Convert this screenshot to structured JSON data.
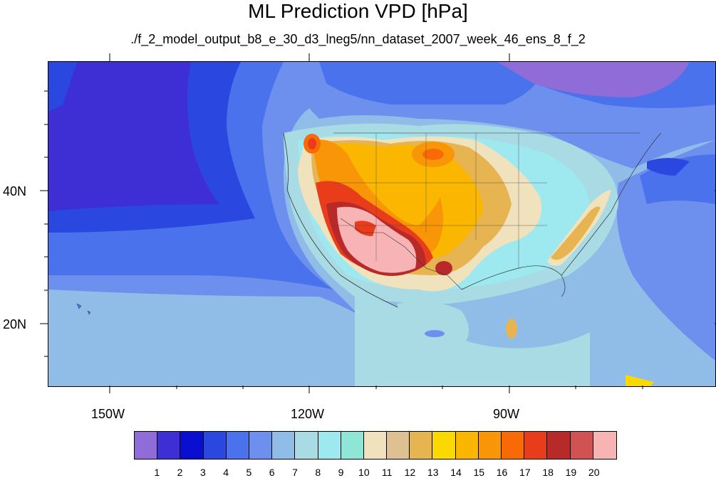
{
  "title": "ML Prediction VPD [hPa]",
  "subtitle": "./f_2_model_output_b8_e_30_d3_lneg5/nn_dataset_2007_week_46_ens_8_f_2",
  "map": {
    "projection": "cylindrical equidistant",
    "lon_labels": [
      "150W",
      "120W",
      "90W"
    ],
    "lat_labels": [
      "40N",
      "20N"
    ]
  },
  "legend": {
    "labels": [
      "1",
      "2",
      "3",
      "4",
      "5",
      "6",
      "7",
      "8",
      "9",
      "10",
      "11",
      "12",
      "13",
      "14",
      "15",
      "16",
      "17",
      "18",
      "19",
      "20"
    ],
    "colors": [
      "#8f6cd8",
      "#3e2fd4",
      "#0a0ed0",
      "#2a48e0",
      "#4a72ec",
      "#6d90ee",
      "#8fbde8",
      "#a8dbe4",
      "#9ee8f0",
      "#8fe6d6",
      "#f0e2bd",
      "#dfc092",
      "#e6b552",
      "#fbd800",
      "#fbb600",
      "#f89608",
      "#f86a06",
      "#e83c1a",
      "#b82a2a",
      "#d05252",
      "#f8b4b4"
    ]
  }
}
